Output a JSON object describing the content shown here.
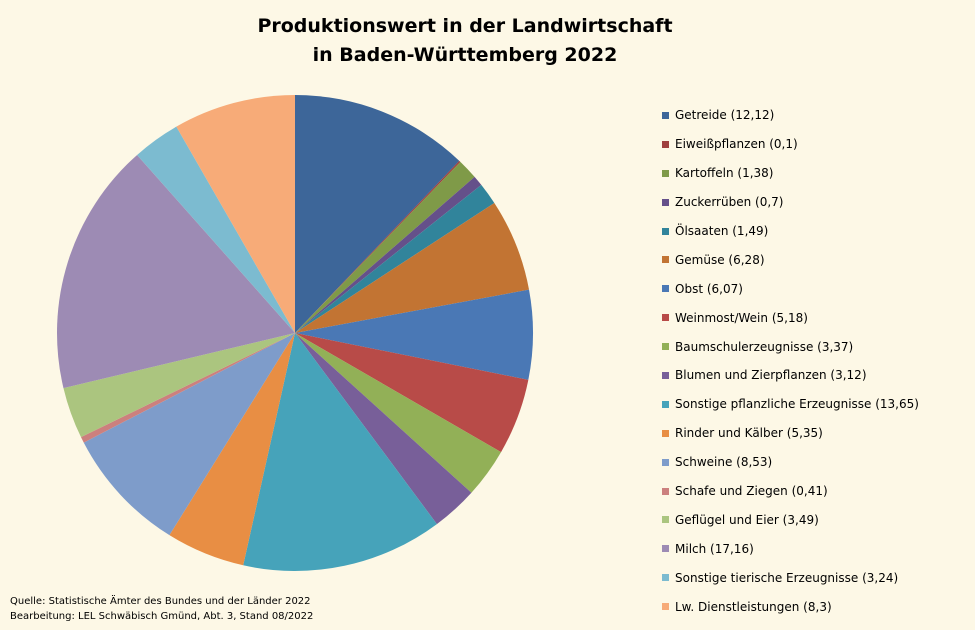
{
  "chart_data": {
    "type": "pie",
    "title": [
      "Produktionswert in der Landwirtschaft",
      "in Baden-Württemberg 2022"
    ],
    "legend_position": "right",
    "start_angle": "top, clockwise",
    "slices": [
      {
        "label": "Getreide (12,12)",
        "value": 12.12,
        "color": "#3d6699"
      },
      {
        "label": "Eiweißpflanzen (0,1)",
        "value": 0.1,
        "color": "#a0403e"
      },
      {
        "label": "Kartoffeln (1,38)",
        "value": 1.38,
        "color": "#7f9a48"
      },
      {
        "label": "Zuckerrüben (0,7)",
        "value": 0.7,
        "color": "#65508a"
      },
      {
        "label": "Ölsaaten (1,49)",
        "value": 1.49,
        "color": "#31849b"
      },
      {
        "label": "Gemüse (6,28)",
        "value": 6.28,
        "color": "#c27433"
      },
      {
        "label": "Obst (6,07)",
        "value": 6.07,
        "color": "#4a78b5"
      },
      {
        "label": "Weinmost/Wein (5,18)",
        "value": 5.18,
        "color": "#b84b48"
      },
      {
        "label": "Baumschulerzeugnisse (3,37)",
        "value": 3.37,
        "color": "#92b057"
      },
      {
        "label": "Blumen und Zierpflanzen (3,12)",
        "value": 3.12,
        "color": "#785f99"
      },
      {
        "label": "Sonstige pflanzliche Erzeugnisse (13,65)",
        "value": 13.65,
        "color": "#46a3ba"
      },
      {
        "label": "Rinder und Kälber (5,35)",
        "value": 5.35,
        "color": "#e88e44"
      },
      {
        "label": "Schweine (8,53)",
        "value": 8.53,
        "color": "#7e9cca"
      },
      {
        "label": "Schafe und Ziegen (0,41)",
        "value": 0.41,
        "color": "#cc807e"
      },
      {
        "label": "Geflügel und Eier (3,49)",
        "value": 3.49,
        "color": "#abc57f"
      },
      {
        "label": "Milch (17,16)",
        "value": 17.16,
        "color": "#9d8bb4"
      },
      {
        "label": "Sonstige tierische Erzeugnisse (3,24)",
        "value": 3.24,
        "color": "#7cbbd0"
      },
      {
        "label": "Lw. Dienstleistungen (8,3)",
        "value": 8.3,
        "color": "#f7ab78"
      }
    ]
  },
  "source": {
    "line1": "Quelle: Statistische Ämter des Bundes und der Länder 2022",
    "line2": "Bearbeitung: LEL Schwäbisch Gmünd, Abt. 3, Stand 08/2022"
  }
}
